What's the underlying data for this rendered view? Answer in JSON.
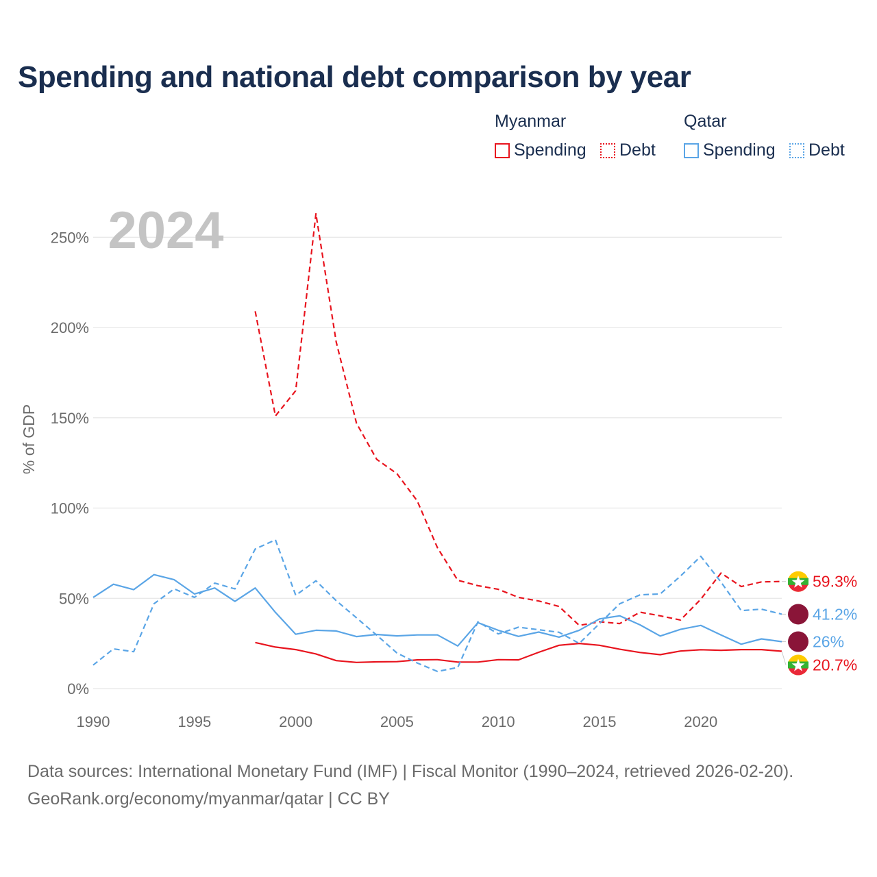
{
  "title": "Spending and national debt comparison by year",
  "legend": {
    "groups": [
      {
        "country": "Myanmar",
        "color": "#e8141e",
        "items": [
          {
            "label": "Spending",
            "style": "solid"
          },
          {
            "label": "Debt",
            "style": "dotted"
          }
        ]
      },
      {
        "country": "Qatar",
        "color": "#5aa5e6",
        "items": [
          {
            "label": "Spending",
            "style": "solid"
          },
          {
            "label": "Debt",
            "style": "dotted"
          }
        ]
      }
    ]
  },
  "source": {
    "line1": "Data sources: International Monetary Fund (IMF) | Fiscal Monitor (1990–2024, retrieved 2026-02-20).",
    "line2": "GeoRank.org/economy/myanmar/qatar | CC BY"
  },
  "chart_data": {
    "type": "line",
    "title": "Spending and national debt comparison by year",
    "year_label": "2024",
    "xlabel": "",
    "ylabel": "% of GDP",
    "xlim": [
      1990,
      2024
    ],
    "ylim": [
      0,
      262
    ],
    "x_ticks": [
      1990,
      1995,
      2000,
      2005,
      2010,
      2015,
      2020
    ],
    "y_ticks": [
      0,
      50,
      100,
      150,
      200,
      250
    ],
    "y_tick_labels": [
      "0%",
      "50%",
      "100%",
      "150%",
      "200%",
      "250%"
    ],
    "grid": true,
    "series": [
      {
        "name": "Myanmar Debt",
        "country": "Myanmar",
        "measure": "Debt",
        "color": "#e8141e",
        "dash": "dashed",
        "end_label": "59.3%",
        "flag": "myanmar-flag",
        "x": [
          1998,
          1999,
          2000,
          2001,
          2002,
          2003,
          2004,
          2005,
          2006,
          2007,
          2008,
          2009,
          2010,
          2011,
          2012,
          2013,
          2014,
          2015,
          2016,
          2017,
          2018,
          2019,
          2020,
          2021,
          2022,
          2023,
          2024
        ],
        "values": [
          209,
          151,
          165,
          263,
          192,
          147,
          127,
          119,
          104,
          78,
          60,
          57,
          55,
          50.5,
          48.5,
          45.5,
          35,
          37,
          36,
          42.3,
          40.3,
          38,
          49.5,
          64,
          56.5,
          59.1,
          59.3
        ]
      },
      {
        "name": "Myanmar Spending",
        "country": "Myanmar",
        "measure": "Spending",
        "color": "#e8141e",
        "dash": "solid",
        "end_label": "20.7%",
        "flag": "myanmar-flag",
        "x": [
          1998,
          1999,
          2000,
          2001,
          2002,
          2003,
          2004,
          2005,
          2006,
          2007,
          2008,
          2009,
          2010,
          2011,
          2012,
          2013,
          2014,
          2015,
          2016,
          2017,
          2018,
          2019,
          2020,
          2021,
          2022,
          2023,
          2024
        ],
        "values": [
          25.5,
          23,
          21.6,
          19.2,
          15.5,
          14.5,
          14.8,
          14.9,
          15.9,
          16,
          14.7,
          14.7,
          16,
          15.9,
          20.1,
          24,
          25,
          24,
          21.8,
          20,
          18.8,
          20.8,
          21.5,
          21.2,
          21.6,
          21.6,
          20.7
        ]
      },
      {
        "name": "Qatar Debt",
        "country": "Qatar",
        "measure": "Debt",
        "color": "#5aa5e6",
        "dash": "dashed",
        "end_label": "41.2%",
        "flag": "qatar-flag",
        "x": [
          1990,
          1991,
          1992,
          1993,
          1994,
          1995,
          1996,
          1997,
          1998,
          1999,
          2000,
          2001,
          2002,
          2003,
          2004,
          2005,
          2006,
          2007,
          2008,
          2009,
          2010,
          2011,
          2012,
          2013,
          2014,
          2015,
          2016,
          2017,
          2018,
          2019,
          2020,
          2021,
          2022,
          2023,
          2024
        ],
        "values": [
          13,
          22,
          20.4,
          47,
          55.2,
          50.5,
          58.4,
          55.2,
          77.3,
          82.4,
          51.7,
          59.7,
          48.7,
          39.2,
          29.6,
          19.7,
          14.2,
          9.5,
          11.7,
          37,
          30.3,
          34,
          32.6,
          31.2,
          25,
          36,
          47,
          51.9,
          52.4,
          62.3,
          73.3,
          59,
          43.2,
          44,
          41.2
        ]
      },
      {
        "name": "Qatar Spending",
        "country": "Qatar",
        "measure": "Spending",
        "color": "#5aa5e6",
        "dash": "solid",
        "end_label": "26%",
        "flag": "qatar-flag",
        "x": [
          1990,
          1991,
          1992,
          1993,
          1994,
          1995,
          1996,
          1997,
          1998,
          1999,
          2000,
          2001,
          2002,
          2003,
          2004,
          2005,
          2006,
          2007,
          2008,
          2009,
          2010,
          2011,
          2012,
          2013,
          2014,
          2015,
          2016,
          2017,
          2018,
          2019,
          2020,
          2021,
          2022,
          2023,
          2024
        ],
        "values": [
          50.5,
          57.8,
          54.8,
          63.1,
          60.3,
          52.4,
          55.7,
          48.3,
          55.7,
          42.2,
          30.1,
          32.3,
          31.9,
          28.8,
          30,
          29.2,
          29.7,
          29.7,
          23.6,
          36.5,
          32.3,
          28.9,
          31.3,
          28.5,
          32.3,
          38.6,
          40.3,
          35.3,
          29.1,
          32.8,
          35,
          29.7,
          24.6,
          27.5,
          26
        ]
      }
    ]
  }
}
